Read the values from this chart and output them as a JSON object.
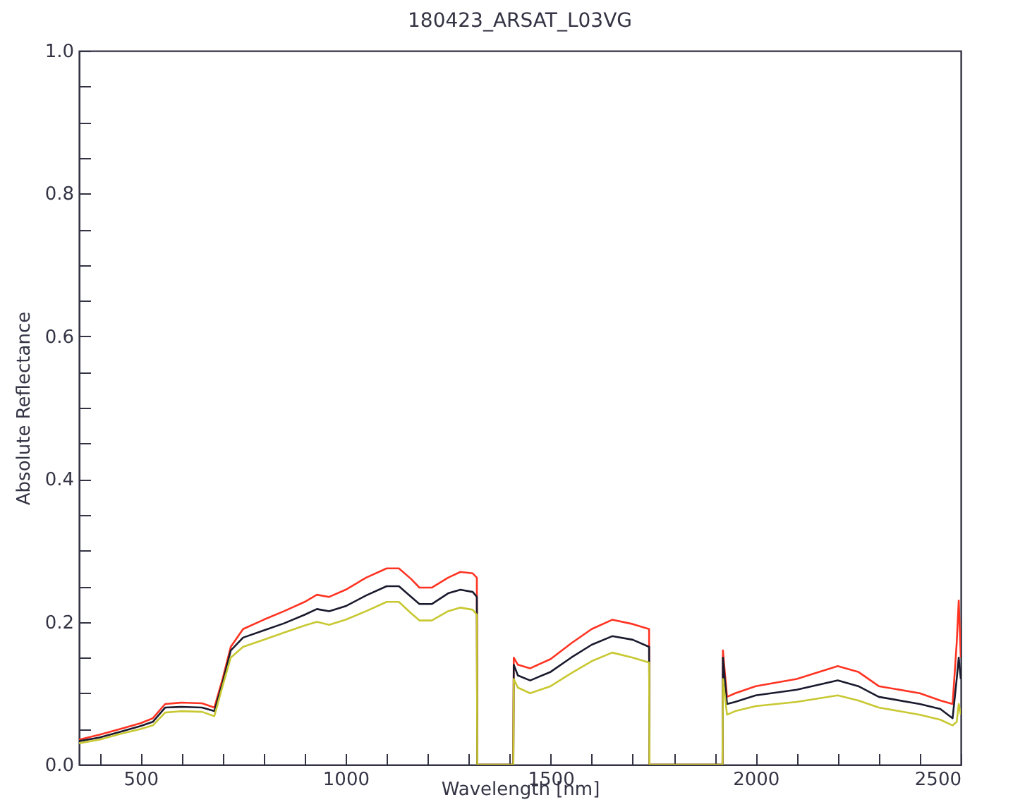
{
  "chart_data": {
    "type": "line",
    "title": "180423_ARSAT_L03VG",
    "xlabel": "Wavelength [nm]",
    "ylabel": "Absolute Reflectance",
    "x": [
      350,
      400,
      450,
      500,
      530,
      560,
      600,
      650,
      680,
      700,
      720,
      750,
      800,
      850,
      900,
      930,
      960,
      1000,
      1050,
      1100,
      1130,
      1160,
      1180,
      1210,
      1250,
      1280,
      1310,
      1320,
      1321,
      1409,
      1410,
      1420,
      1450,
      1500,
      1550,
      1600,
      1650,
      1700,
      1740,
      1741,
      1919,
      1920,
      1930,
      1950,
      2000,
      2100,
      2200,
      2250,
      2300,
      2400,
      2450,
      2480,
      2490,
      2495,
      2500
    ],
    "series": [
      {
        "color": "#ff3322",
        "values": [
          0.035,
          0.042,
          0.05,
          0.058,
          0.065,
          0.085,
          0.087,
          0.086,
          0.08,
          0.12,
          0.165,
          0.19,
          0.203,
          0.215,
          0.228,
          0.238,
          0.235,
          0.245,
          0.262,
          0.275,
          0.275,
          0.26,
          0.248,
          0.248,
          0.262,
          0.27,
          0.268,
          0.262,
          0,
          0,
          0.15,
          0.14,
          0.135,
          0.148,
          0.17,
          0.19,
          0.203,
          0.197,
          0.19,
          0,
          0,
          0.16,
          0.095,
          0.1,
          0.11,
          0.12,
          0.138,
          0.13,
          0.11,
          0.1,
          0.09,
          0.085,
          0.17,
          0.23,
          0.15
        ]
      },
      {
        "color": "#1a1a2e",
        "values": [
          0.033,
          0.038,
          0.046,
          0.054,
          0.06,
          0.08,
          0.081,
          0.08,
          0.075,
          0.115,
          0.16,
          0.178,
          0.188,
          0.198,
          0.21,
          0.218,
          0.215,
          0.222,
          0.237,
          0.25,
          0.25,
          0.235,
          0.225,
          0.225,
          0.24,
          0.245,
          0.242,
          0.235,
          0,
          0,
          0.14,
          0.125,
          0.118,
          0.13,
          0.15,
          0.168,
          0.18,
          0.175,
          0.165,
          0,
          0,
          0.15,
          0.085,
          0.088,
          0.097,
          0.105,
          0.118,
          0.11,
          0.095,
          0.085,
          0.078,
          0.065,
          0.12,
          0.15,
          0.12
        ]
      },
      {
        "color": "#c8c832",
        "values": [
          0.03,
          0.035,
          0.043,
          0.05,
          0.055,
          0.073,
          0.075,
          0.074,
          0.068,
          0.11,
          0.15,
          0.165,
          0.175,
          0.185,
          0.195,
          0.2,
          0.196,
          0.203,
          0.215,
          0.228,
          0.228,
          0.212,
          0.202,
          0.202,
          0.215,
          0.22,
          0.217,
          0.21,
          0,
          0,
          0.12,
          0.108,
          0.1,
          0.11,
          0.128,
          0.145,
          0.157,
          0.15,
          0.143,
          0,
          0,
          0.12,
          0.07,
          0.075,
          0.082,
          0.088,
          0.097,
          0.09,
          0.08,
          0.07,
          0.063,
          0.055,
          0.06,
          0.085,
          0.07
        ]
      }
    ],
    "xlim": [
      350,
      2500
    ],
    "xticks": [
      {
        "value": 400,
        "label": null
      },
      500,
      {
        "value": 600,
        "label": null
      },
      {
        "value": 700,
        "label": null
      },
      {
        "value": 800,
        "label": null
      },
      {
        "value": 900,
        "label": null
      },
      1000,
      {
        "value": 1100,
        "label": null
      },
      {
        "value": 1200,
        "label": null
      },
      {
        "value": 1300,
        "label": null
      },
      {
        "value": 1400,
        "label": null
      },
      1500,
      {
        "value": 1600,
        "label": null
      },
      {
        "value": 1700,
        "label": null
      },
      {
        "value": 1800,
        "label": null
      },
      {
        "value": 1900,
        "label": null
      },
      2000,
      {
        "value": 2100,
        "label": null
      },
      {
        "value": 2200,
        "label": null
      },
      {
        "value": 2300,
        "label": null
      },
      {
        "value": 2400,
        "label": null
      },
      2500
    ],
    "ylim": [
      0,
      1
    ],
    "yticks": [
      {
        "value": 0,
        "label": "0.0"
      },
      {
        "value": 0.05,
        "label": null
      },
      {
        "value": 0.1,
        "label": null
      },
      {
        "value": 0.15,
        "label": null
      },
      {
        "value": 0.2,
        "label": "0.2"
      },
      {
        "value": 0.25,
        "label": null
      },
      {
        "value": 0.3,
        "label": null
      },
      {
        "value": 0.35,
        "label": null
      },
      {
        "value": 0.4,
        "label": "0.4"
      },
      {
        "value": 0.45,
        "label": null
      },
      {
        "value": 0.5,
        "label": null
      },
      {
        "value": 0.55,
        "label": null
      },
      {
        "value": 0.6,
        "label": "0.6"
      },
      {
        "value": 0.65,
        "label": null
      },
      {
        "value": 0.7,
        "label": null
      },
      {
        "value": 0.75,
        "label": null
      },
      {
        "value": 0.8,
        "label": "0.8"
      },
      {
        "value": 0.85,
        "label": null
      },
      {
        "value": 0.9,
        "label": null
      },
      {
        "value": 0.95,
        "label": null
      },
      {
        "value": 1,
        "label": "1.0"
      }
    ]
  }
}
